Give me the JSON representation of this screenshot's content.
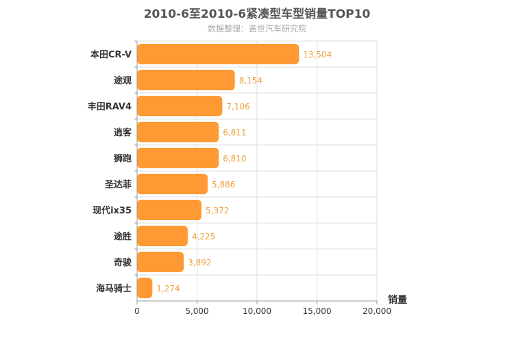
{
  "chart_data": {
    "type": "bar",
    "orientation": "horizontal",
    "title": "2010-6至2010-6紧凑型车型销量TOP10",
    "subtitle": "数据整理：盖世汽车研究院",
    "categories": [
      "本田CR-V",
      "途观",
      "丰田RAV4",
      "逍客",
      "狮跑",
      "圣达菲",
      "现代ix35",
      "途胜",
      "奇骏",
      "海马骑士"
    ],
    "values": [
      13504,
      8154,
      7106,
      6811,
      6810,
      5886,
      5372,
      4225,
      3892,
      1274
    ],
    "value_labels": [
      "13,504",
      "8,154",
      "7,106",
      "6,811",
      "6,810",
      "5,886",
      "5,372",
      "4,225",
      "3,892",
      "1,274"
    ],
    "xlabel": "销量",
    "ylabel": "",
    "xlim": [
      0,
      20000
    ],
    "xticks": [
      0,
      5000,
      10000,
      15000,
      20000
    ],
    "xtick_labels": [
      "0",
      "5,000",
      "10,000",
      "15,000",
      "20,000"
    ],
    "grid": true,
    "bar_color": "#ff9933",
    "label_color": "#f0a040"
  }
}
